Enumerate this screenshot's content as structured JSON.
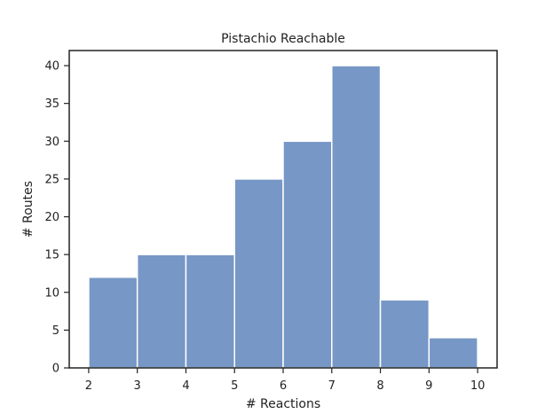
{
  "chart_data": {
    "type": "bar",
    "title": "Pistachio Reachable",
    "xlabel": "# Reactions",
    "ylabel": "# Routes",
    "bins": [
      {
        "x0": 2,
        "x1": 3,
        "value": 12
      },
      {
        "x0": 3,
        "x1": 4,
        "value": 15
      },
      {
        "x0": 4,
        "x1": 5,
        "value": 15
      },
      {
        "x0": 5,
        "x1": 6,
        "value": 25
      },
      {
        "x0": 6,
        "x1": 7,
        "value": 30
      },
      {
        "x0": 7,
        "x1": 8,
        "value": 40
      },
      {
        "x0": 8,
        "x1": 9,
        "value": 9
      },
      {
        "x0": 9,
        "x1": 10,
        "value": 4
      }
    ],
    "xlim": [
      1.6,
      10.4
    ],
    "ylim": [
      0,
      42
    ],
    "xticks": [
      2,
      3,
      4,
      5,
      6,
      7,
      8,
      9,
      10
    ],
    "yticks": [
      0,
      5,
      10,
      15,
      20,
      25,
      30,
      35,
      40
    ],
    "grid": false,
    "colors": {
      "bar": "#7797c6",
      "bar_edge": "#ffffff",
      "axis": "#222222"
    }
  }
}
